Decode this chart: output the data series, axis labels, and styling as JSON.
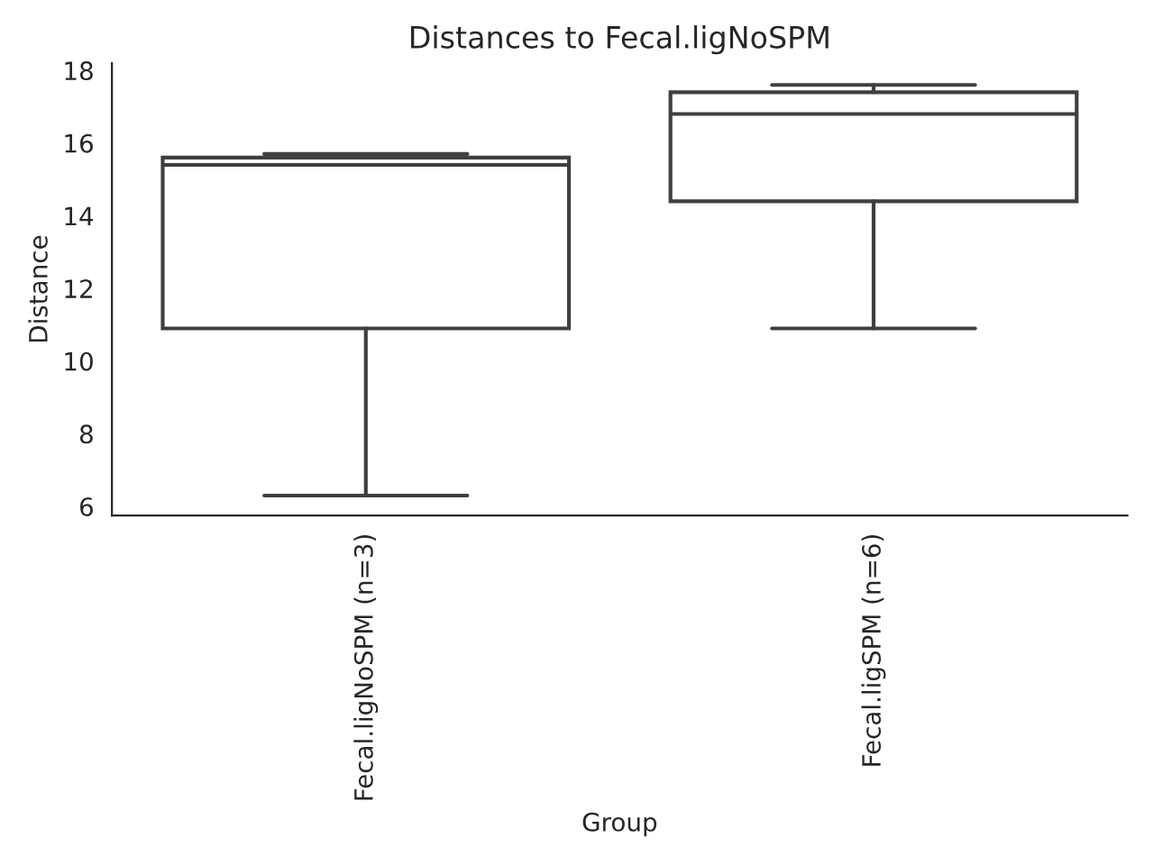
{
  "chart_data": {
    "type": "box",
    "title": "Distances to Fecal.ligNoSPM",
    "xlabel": "Group",
    "ylabel": "Distance",
    "categories": [
      "Fecal.ligNoSPM (n=3)",
      "Fecal.ligSPM (n=6)"
    ],
    "boxes": [
      {
        "low": 6.3,
        "q1": 10.9,
        "median": 15.4,
        "q3": 15.6,
        "high": 15.7
      },
      {
        "low": 10.9,
        "q1": 14.4,
        "median": 16.8,
        "q3": 17.4,
        "high": 17.6
      }
    ],
    "color": "#3f3f3f",
    "ylim": [
      5.75,
      18.2
    ],
    "yticks": [
      6,
      8,
      10,
      12,
      14,
      16,
      18
    ],
    "grid": false
  }
}
